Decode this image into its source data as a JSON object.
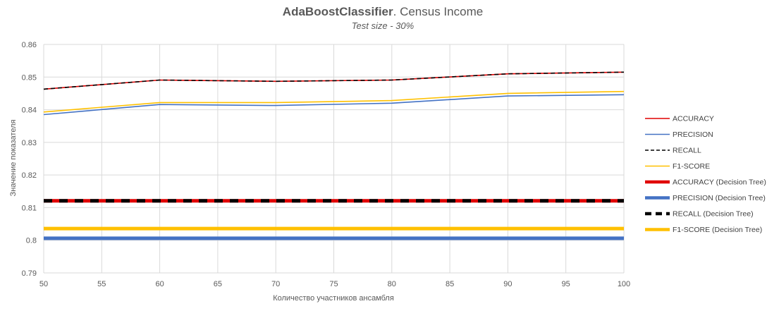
{
  "chart_data": {
    "type": "line",
    "title_bold": "AdaBoostClassifier",
    "title_rest": ". Census Income",
    "subtitle": "Test size - 30%",
    "xlabel": "Количество участников ансамбля",
    "ylabel": "Значение показателя",
    "xlim": [
      50,
      100
    ],
    "ylim": [
      0.79,
      0.86
    ],
    "x_ticks": [
      "50",
      "55",
      "60",
      "65",
      "70",
      "75",
      "80",
      "85",
      "90",
      "95",
      "100"
    ],
    "y_ticks": [
      "0.79",
      "0.8",
      "0.81",
      "0.82",
      "0.83",
      "0.84",
      "0.85",
      "0.86"
    ],
    "grid": true,
    "legend_position": "right",
    "x": [
      50,
      60,
      70,
      80,
      90,
      100
    ],
    "series": [
      {
        "name": "ACCURACY",
        "values": [
          0.8463,
          0.8491,
          0.8487,
          0.8491,
          0.851,
          0.8515
        ],
        "color": "#e00000",
        "style": "solid",
        "weight": "thin"
      },
      {
        "name": "PRECISION",
        "values": [
          0.8385,
          0.8416,
          0.8413,
          0.842,
          0.8442,
          0.8446
        ],
        "color": "#4472c4",
        "style": "solid",
        "weight": "thin"
      },
      {
        "name": "RECALL",
        "values": [
          0.8463,
          0.8491,
          0.8487,
          0.8491,
          0.851,
          0.8515
        ],
        "color": "#000000",
        "style": "dashed",
        "weight": "thin"
      },
      {
        "name": "F1-SCORE",
        "values": [
          0.8393,
          0.8422,
          0.8422,
          0.8428,
          0.845,
          0.8456
        ],
        "color": "#ffc000",
        "style": "solid",
        "weight": "thin"
      },
      {
        "name": "ACCURACY (Decision Tree)",
        "values": [
          0.8121,
          0.8121,
          0.8121,
          0.8121,
          0.8121,
          0.8121
        ],
        "color": "#e00000",
        "style": "solid",
        "weight": "thick"
      },
      {
        "name": "PRECISION (Decision Tree)",
        "values": [
          0.8006,
          0.8006,
          0.8006,
          0.8006,
          0.8006,
          0.8006
        ],
        "color": "#4472c4",
        "style": "solid",
        "weight": "thick"
      },
      {
        "name": "RECALL (Decision Tree)",
        "values": [
          0.8121,
          0.8121,
          0.8121,
          0.8121,
          0.8121,
          0.8121
        ],
        "color": "#000000",
        "style": "dashed",
        "weight": "thick"
      },
      {
        "name": "F1-SCORE (Decision Tree)",
        "values": [
          0.8036,
          0.8036,
          0.8036,
          0.8036,
          0.8036,
          0.8036
        ],
        "color": "#ffc000",
        "style": "solid",
        "weight": "thick"
      }
    ]
  }
}
